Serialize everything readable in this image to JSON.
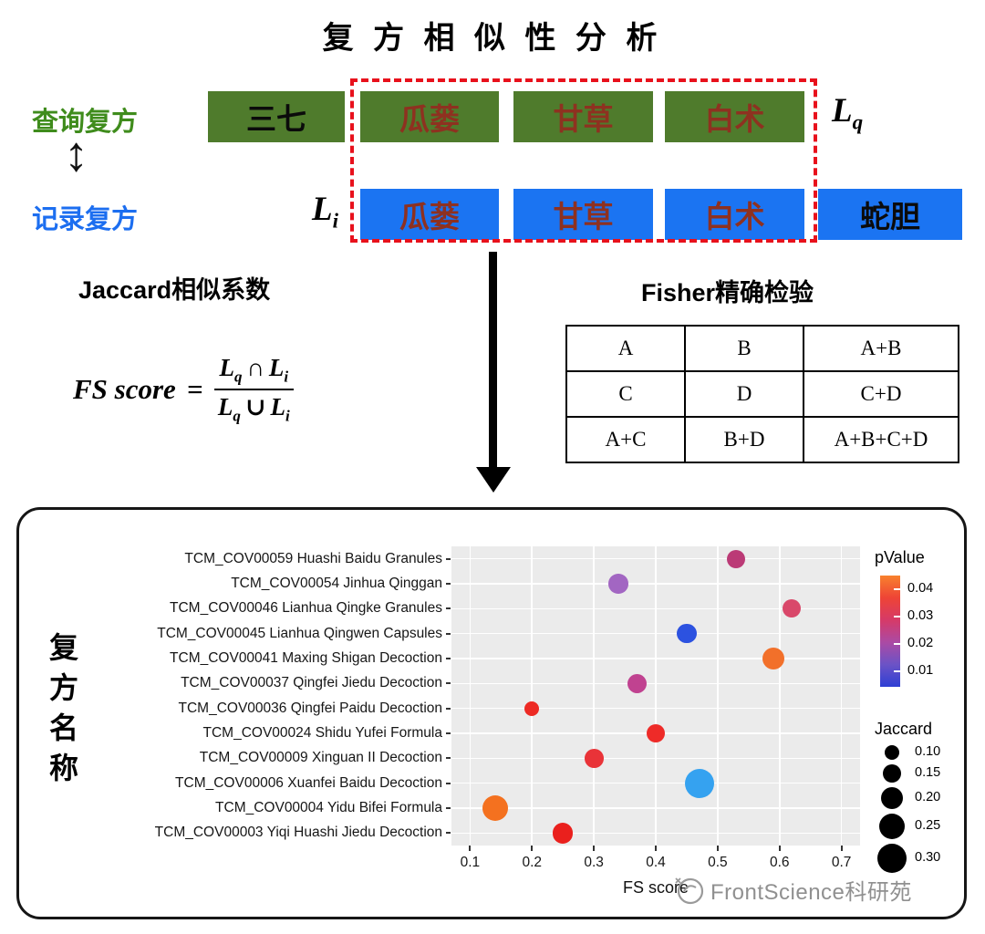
{
  "title": "复 方 相 似 性 分 析",
  "colors": {
    "green_box": "#4f7b2c",
    "blue_box": "#1b74f2",
    "shared_text": "#8e3120",
    "query_label": "#3f8c1c",
    "record_label": "#1c6ef0",
    "dashed_border": "#e8111c",
    "plot_bg": "#ebebeb",
    "watermark_text": "#909090"
  },
  "icons": {
    "updown_arrow": "↕"
  },
  "diagram": {
    "query_label": "查询复方",
    "record_label": "记录复方",
    "lq": {
      "base": "L",
      "sub": "q"
    },
    "li": {
      "base": "L",
      "sub": "i"
    },
    "query_boxes": [
      {
        "text": "三七",
        "shared": false
      },
      {
        "text": "瓜蒌",
        "shared": true
      },
      {
        "text": "甘草",
        "shared": true
      },
      {
        "text": "白术",
        "shared": true
      }
    ],
    "record_boxes": [
      {
        "text": "瓜蒌",
        "shared": true
      },
      {
        "text": "甘草",
        "shared": true
      },
      {
        "text": "白术",
        "shared": true
      },
      {
        "text": "蛇胆",
        "shared": false
      }
    ]
  },
  "jaccard_title": "Jaccard相似系数",
  "formula": {
    "lhs": "FS score",
    "equals": "=",
    "num": {
      "a": "L",
      "a_sub": "q",
      "op": "∩",
      "b": "L",
      "b_sub": "i"
    },
    "den": {
      "a": "L",
      "a_sub": "q",
      "op": "∪",
      "b": "L",
      "b_sub": "i"
    }
  },
  "fisher": {
    "title": "Fisher精确检验",
    "rows": [
      [
        "A",
        "B",
        "A+B"
      ],
      [
        "C",
        "D",
        "C+D"
      ],
      [
        "A+C",
        "B+D",
        "A+B+C+D"
      ]
    ]
  },
  "chart_data": {
    "type": "scatter",
    "title": "",
    "ylabel": "复方名称",
    "xlabel": "FS score",
    "xlim": [
      0.07,
      0.73
    ],
    "x_ticks": [
      0.1,
      0.2,
      0.3,
      0.4,
      0.5,
      0.6,
      0.7
    ],
    "grid": true,
    "legend_position": "right",
    "categories": [
      "TCM_COV00059 Huashi Baidu Granules",
      "TCM_COV00054 Jinhua Qinggan",
      "TCM_COV00046 Lianhua Qingke Granules",
      "TCM_COV00045 Lianhua Qingwen Capsules",
      "TCM_COV00041 Maxing Shigan Decoction",
      "TCM_COV00037 Qingfei Jiedu Decoction",
      "TCM_COV00036 Qingfei Paidu Decoction",
      "TCM_COV00024 Shidu Yufei Formula",
      "TCM_COV00009 Xinguan II Decoction",
      "TCM_COV00006 Xuanfei Baidu Decoction",
      "TCM_COV00004 Yidu Bifei Formula",
      "TCM_COV00003 Yiqi Huashi Jiedu Decoction"
    ],
    "points": [
      {
        "x": 0.53,
        "jaccard": 0.15,
        "pvalue": 0.025,
        "color": "#bb3a76"
      },
      {
        "x": 0.34,
        "jaccard": 0.17,
        "pvalue": 0.02,
        "color": "#a266c2"
      },
      {
        "x": 0.62,
        "jaccard": 0.15,
        "pvalue": 0.03,
        "color": "#d9486a"
      },
      {
        "x": 0.45,
        "jaccard": 0.17,
        "pvalue": 0.01,
        "color": "#2c52e0"
      },
      {
        "x": 0.59,
        "jaccard": 0.2,
        "pvalue": 0.04,
        "color": "#f2702a"
      },
      {
        "x": 0.37,
        "jaccard": 0.17,
        "pvalue": 0.022,
        "color": "#c04290"
      },
      {
        "x": 0.2,
        "jaccard": 0.1,
        "pvalue": 0.045,
        "color": "#ed2a24"
      },
      {
        "x": 0.4,
        "jaccard": 0.15,
        "pvalue": 0.045,
        "color": "#ee2b28"
      },
      {
        "x": 0.3,
        "jaccard": 0.16,
        "pvalue": 0.045,
        "color": "#e93338"
      },
      {
        "x": 0.47,
        "jaccard": 0.3,
        "pvalue": 0.005,
        "color": "#35a2f0"
      },
      {
        "x": 0.14,
        "jaccard": 0.25,
        "pvalue": 0.04,
        "color": "#f4711f"
      },
      {
        "x": 0.25,
        "jaccard": 0.18,
        "pvalue": 0.045,
        "color": "#ea201d"
      }
    ],
    "color_legend": {
      "title": "pValue",
      "ticks": [
        0.04,
        0.03,
        0.02,
        0.01
      ],
      "gradient": [
        "#f8812d",
        "#ee4436",
        "#d63a68",
        "#ab4aa4",
        "#6b53c6",
        "#2e3fd4"
      ]
    },
    "size_legend": {
      "title": "Jaccard",
      "values": [
        0.1,
        0.15,
        0.2,
        0.25,
        0.3
      ]
    }
  },
  "watermark": "FrontScience科研苑"
}
